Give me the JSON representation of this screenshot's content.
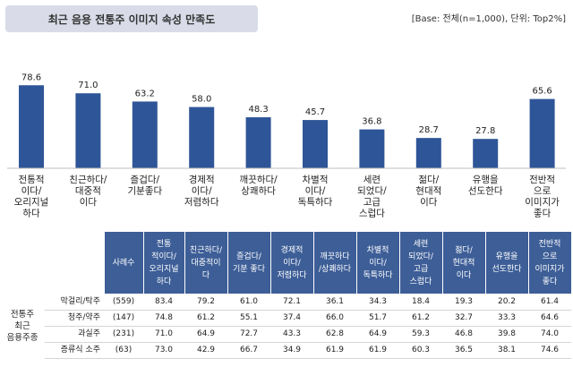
{
  "header": {
    "title": "최근 음용 전통주 이미지 속성 만족도",
    "base_note": "[Base: 전체(n=1,000), 단위: Top2%]"
  },
  "chart_data": {
    "type": "bar",
    "title": "최근 음용 전통주 이미지 속성 만족도",
    "categories": [
      "전통적\n이다/\n오리지널\n하다",
      "친근하다/\n대중적\n이다",
      "즐겁다/\n기분좋다",
      "경제적\n이다/\n저렴하다",
      "깨끗하다/\n상쾌하다",
      "차별적\n이다/\n독특하다",
      "세련\n되었다/\n고급\n스럽다",
      "젊다/\n현대적\n이다",
      "유행을\n선도한다",
      "전반적\n으로\n이미지가\n좋다"
    ],
    "values": [
      78.6,
      71.0,
      63.2,
      58.0,
      48.3,
      45.7,
      36.8,
      28.7,
      27.8,
      65.6
    ],
    "value_labels": [
      "78.6",
      "71.0",
      "63.2",
      "58.0",
      "48.3",
      "45.7",
      "36.8",
      "28.7",
      "27.8",
      "65.6"
    ],
    "ylim": [
      0,
      100
    ],
    "xlabel": "",
    "ylabel": "",
    "bar_color": "#2e5597"
  },
  "table": {
    "sample_header": "사례수",
    "columns": [
      "전통\n적이다/\n오리지널\n하다",
      "친근하다/\n대중적이\n다",
      "즐겁다/\n기분 좋다",
      "경제적\n이다/\n저렴하다",
      "깨끗하다\n/상쾌하다",
      "차별적\n이다/\n독특하다",
      "세련\n되었다/\n고급\n스럽다",
      "젊다/\n현대적\n이다",
      "유행을\n선도한다",
      "전반적\n으로\n이미지가\n좋다"
    ],
    "group_label": "전통주\n최근\n음용주종",
    "rows": [
      {
        "label": "막걸리/탁주",
        "n": "(559)",
        "values": [
          "83.4",
          "79.2",
          "61.0",
          "72.1",
          "36.1",
          "34.3",
          "18.4",
          "19.3",
          "20.2",
          "61.4"
        ]
      },
      {
        "label": "청주/약주",
        "n": "(147)",
        "values": [
          "74.8",
          "61.2",
          "55.1",
          "37.4",
          "66.0",
          "51.7",
          "61.2",
          "32.7",
          "33.3",
          "64.6"
        ]
      },
      {
        "label": "과실주",
        "n": "(231)",
        "values": [
          "71.0",
          "64.9",
          "72.7",
          "43.3",
          "62.8",
          "64.9",
          "59.3",
          "46.8",
          "39.8",
          "74.0"
        ]
      },
      {
        "label": "증류식 소주",
        "n": "(63)",
        "values": [
          "73.0",
          "42.9",
          "66.7",
          "34.9",
          "61.9",
          "61.9",
          "60.3",
          "36.5",
          "38.1",
          "74.6"
        ]
      }
    ]
  }
}
